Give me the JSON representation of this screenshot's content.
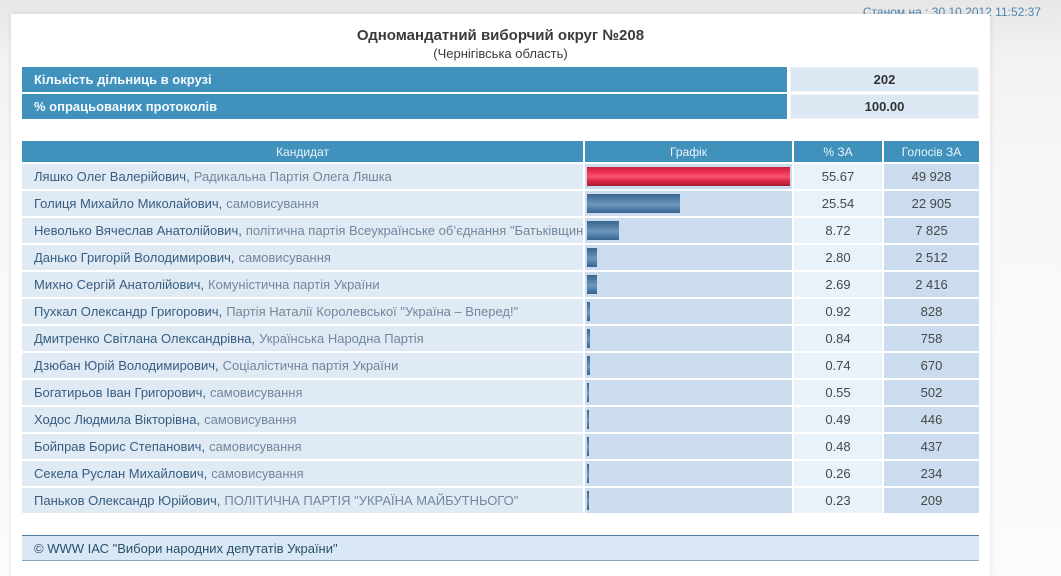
{
  "page": {
    "timestamp_label": "Станом на : 30.10.2012 11:52:37",
    "title": "Одномандатний виборчий округ №208",
    "subtitle": "(Чернігівська область)",
    "footer": "© WWW ІАС \"Вибори народних депутатів України\""
  },
  "summary": {
    "rows": [
      {
        "label": "Кількість дільниць в окрузі",
        "value": "202"
      },
      {
        "label": "% опрацьованих протоколів",
        "value": "100.00"
      }
    ]
  },
  "results_table": {
    "columns": [
      "Кандидат",
      "Графік",
      "% ЗА",
      "Голосів ЗА"
    ],
    "max_percent": 55.67,
    "bar_colors": {
      "leader": "#ed2c50",
      "other": "#5d88b0"
    },
    "rows": [
      {
        "name": "Ляшко Олег Валерійович",
        "party": "Радикальна Партія Олега Ляшка",
        "percent": "55.67",
        "votes": "49 928",
        "bar_color": "red"
      },
      {
        "name": "Голиця Михайло Миколайович",
        "party": "самовисування",
        "percent": "25.54",
        "votes": "22 905",
        "bar_color": "blue"
      },
      {
        "name": "Неволько Вячеслав Анатолійович",
        "party": "політична партія Всеукраїнське об’єднання \"Батьківщина\"",
        "percent": "8.72",
        "votes": "7 825",
        "bar_color": "blue"
      },
      {
        "name": "Данько Григорій Володимирович",
        "party": "самовисування",
        "percent": "2.80",
        "votes": "2 512",
        "bar_color": "blue"
      },
      {
        "name": "Михно Сергій Анатолійович",
        "party": "Комуністична партія України",
        "percent": "2.69",
        "votes": "2 416",
        "bar_color": "blue"
      },
      {
        "name": "Пухкал Олександр Григорович",
        "party": "Партія Наталії Королевської \"Україна – Вперед!\"",
        "percent": "0.92",
        "votes": "828",
        "bar_color": "blue"
      },
      {
        "name": "Дмитренко Світлана Олександрівна",
        "party": "Українська Народна Партія",
        "percent": "0.84",
        "votes": "758",
        "bar_color": "blue"
      },
      {
        "name": "Дзюбан Юрій Володимирович",
        "party": "Соціалістична партія України",
        "percent": "0.74",
        "votes": "670",
        "bar_color": "blue"
      },
      {
        "name": "Богатирьов Іван Григорович",
        "party": "самовисування",
        "percent": "0.55",
        "votes": "502",
        "bar_color": "blue"
      },
      {
        "name": "Ходос Людмила Вікторівна",
        "party": "самовисування",
        "percent": "0.49",
        "votes": "446",
        "bar_color": "blue"
      },
      {
        "name": "Бойправ Борис Степанович",
        "party": "самовисування",
        "percent": "0.48",
        "votes": "437",
        "bar_color": "blue"
      },
      {
        "name": "Секела Руслан Михайлович",
        "party": "самовисування",
        "percent": "0.26",
        "votes": "234",
        "bar_color": "blue"
      },
      {
        "name": "Паньков Олександр Юрійович",
        "party": "ПОЛІТИЧНА ПАРТІЯ \"УКРАЇНА МАЙБУТНЬОГО\"",
        "percent": "0.23",
        "votes": "209",
        "bar_color": "blue"
      }
    ]
  }
}
